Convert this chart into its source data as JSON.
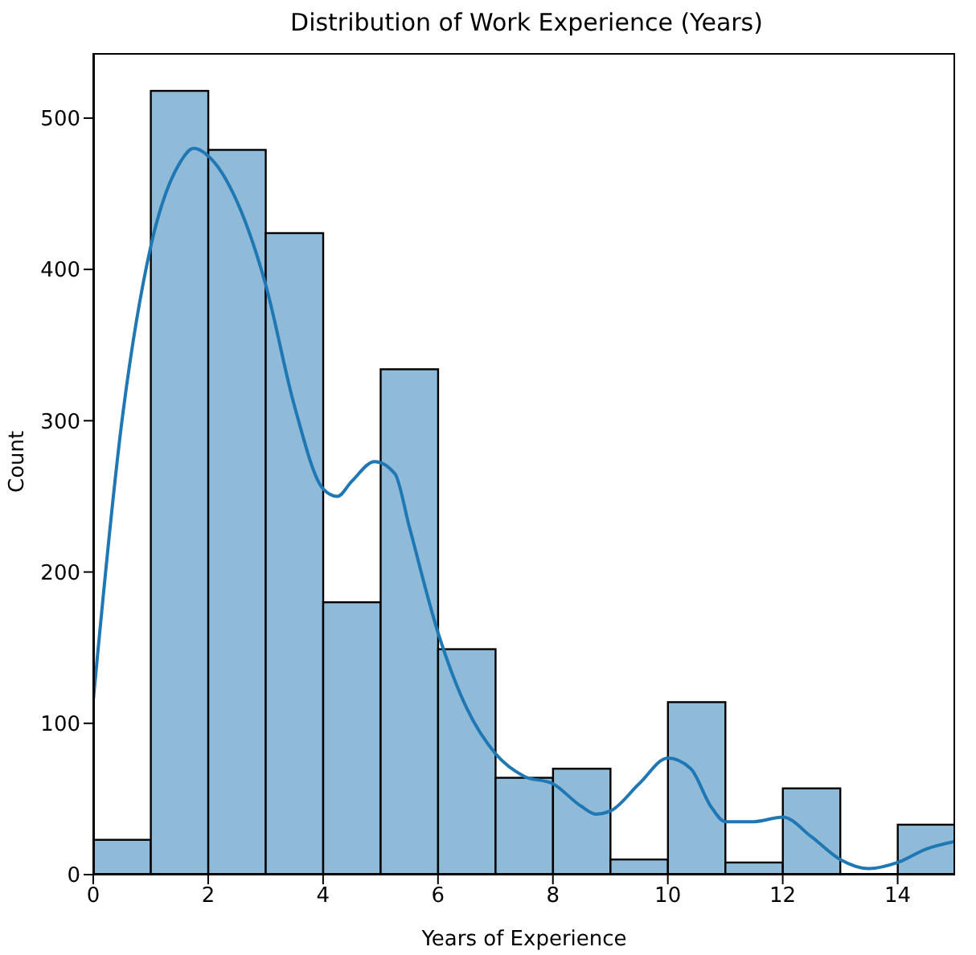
{
  "chart_data": {
    "type": "histogram",
    "title": "Distribution of Work Experience (Years)",
    "xlabel": "Years of Experience",
    "ylabel": "Count",
    "bins": [
      0,
      1,
      2,
      3,
      4,
      5,
      6,
      7,
      8,
      9,
      10,
      11,
      12,
      13,
      14,
      15
    ],
    "values": [
      23,
      518,
      479,
      424,
      180,
      334,
      149,
      64,
      70,
      10,
      114,
      8,
      57,
      0,
      33
    ],
    "color": "#8fbbd9",
    "series": [
      {
        "type": "line",
        "color": "#1f77b4",
        "x": [
          0,
          0.5,
          1,
          1.5,
          1.75,
          2,
          2.5,
          3,
          3.5,
          4,
          4.25,
          4.5,
          4.9,
          5.25,
          5.5,
          6,
          6.5,
          7,
          7.5,
          8,
          8.5,
          8.75,
          9,
          9.5,
          10,
          10.4,
          10.75,
          11,
          11.5,
          12,
          12.5,
          13,
          13.5,
          14,
          14.5,
          15
        ],
        "values": [
          115,
          300,
          415,
          470,
          480,
          475,
          445,
          390,
          310,
          255,
          250,
          260,
          273,
          265,
          230,
          160,
          110,
          80,
          65,
          60,
          45,
          40,
          42,
          60,
          77,
          70,
          45,
          35,
          35,
          38,
          25,
          10,
          4,
          8,
          17,
          22
        ]
      }
    ],
    "xlim": [
      0,
      15
    ],
    "xticks": [
      0,
      2,
      4,
      6,
      8,
      10,
      12,
      14
    ],
    "ylim": [
      0,
      543
    ],
    "yticks": [
      0,
      100,
      200,
      300,
      400,
      500
    ]
  }
}
